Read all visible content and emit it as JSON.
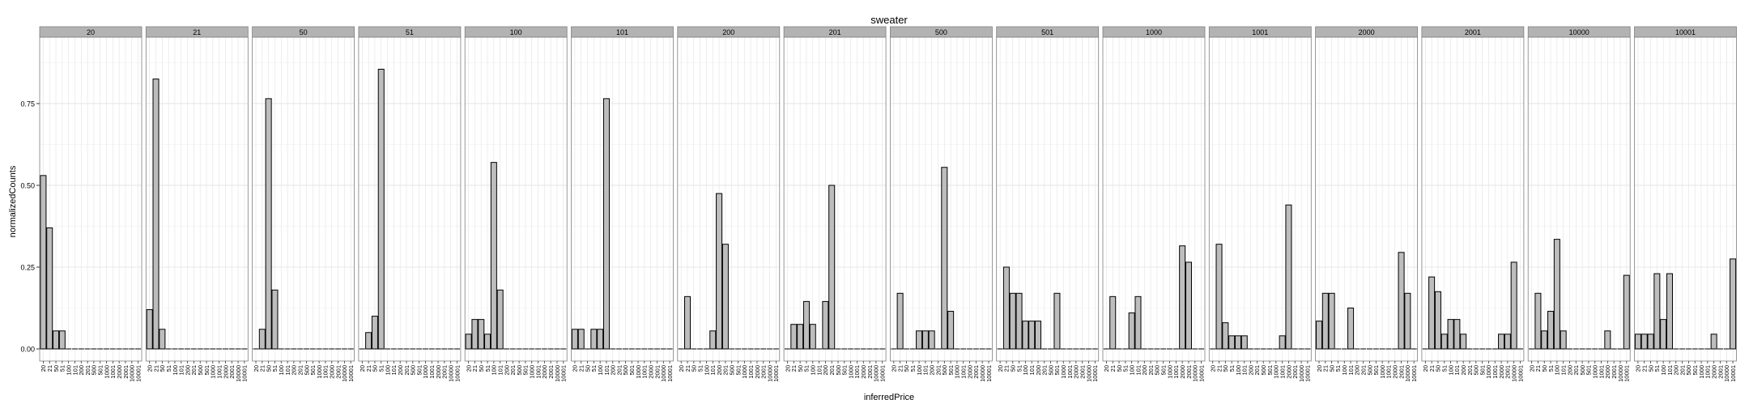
{
  "chart_data": {
    "type": "bar",
    "title": "sweater",
    "xlabel": "inferredPrice",
    "ylabel": "normalizedCounts",
    "categories": [
      "20",
      "21",
      "50",
      "51",
      "100",
      "101",
      "200",
      "201",
      "500",
      "501",
      "1000",
      "1001",
      "2000",
      "2001",
      "10000",
      "10001"
    ],
    "ylim": [
      0,
      0.9
    ],
    "yticks": [
      0.0,
      0.25,
      0.5,
      0.75
    ],
    "ytick_labels": [
      "0.00",
      "0.25",
      "0.50",
      "0.75"
    ],
    "grid": true,
    "colors": {
      "bar_fill": "#bdbdbd",
      "bar_stroke": "#000000",
      "strip_fill": "#b3b3b3",
      "grid_major": "#e2e2e2",
      "grid_minor": "#f2f2f2"
    },
    "panels": [
      {
        "label": "20",
        "values": [
          0.53,
          0.37,
          0.055,
          0.055,
          0,
          0,
          0,
          0,
          0,
          0,
          0,
          0,
          0,
          0,
          0,
          0
        ]
      },
      {
        "label": "21",
        "values": [
          0.12,
          0.825,
          0.06,
          0,
          0,
          0,
          0,
          0,
          0,
          0,
          0,
          0,
          0,
          0,
          0,
          0
        ]
      },
      {
        "label": "50",
        "values": [
          0,
          0.06,
          0.765,
          0.18,
          0,
          0,
          0,
          0,
          0,
          0,
          0,
          0,
          0,
          0,
          0,
          0
        ]
      },
      {
        "label": "51",
        "values": [
          0,
          0.05,
          0.1,
          0.855,
          0,
          0,
          0,
          0,
          0,
          0,
          0,
          0,
          0,
          0,
          0,
          0
        ]
      },
      {
        "label": "100",
        "values": [
          0.045,
          0.09,
          0.09,
          0.045,
          0.57,
          0.18,
          0,
          0,
          0,
          0,
          0,
          0,
          0,
          0,
          0,
          0
        ]
      },
      {
        "label": "101",
        "values": [
          0.06,
          0.06,
          0,
          0.06,
          0.06,
          0.765,
          0,
          0,
          0,
          0,
          0,
          0,
          0,
          0,
          0,
          0
        ]
      },
      {
        "label": "200",
        "values": [
          0,
          0.16,
          0,
          0,
          0,
          0.055,
          0.475,
          0.32,
          0,
          0,
          0,
          0,
          0,
          0,
          0,
          0
        ]
      },
      {
        "label": "201",
        "values": [
          0,
          0.075,
          0.075,
          0.145,
          0.075,
          0,
          0.145,
          0.5,
          0,
          0,
          0,
          0,
          0,
          0,
          0,
          0
        ]
      },
      {
        "label": "500",
        "values": [
          0,
          0.17,
          0,
          0,
          0.055,
          0.055,
          0.055,
          0,
          0.555,
          0.115,
          0,
          0,
          0,
          0,
          0,
          0
        ]
      },
      {
        "label": "501",
        "values": [
          0,
          0.25,
          0.17,
          0.17,
          0.085,
          0.085,
          0.085,
          0,
          0,
          0.17,
          0,
          0,
          0,
          0,
          0,
          0
        ]
      },
      {
        "label": "1000",
        "values": [
          0,
          0.16,
          0,
          0,
          0.11,
          0.16,
          0,
          0,
          0,
          0,
          0,
          0,
          0.315,
          0.265,
          0,
          0
        ]
      },
      {
        "label": "1001",
        "values": [
          0,
          0.32,
          0.08,
          0.04,
          0.04,
          0.04,
          0,
          0,
          0,
          0,
          0,
          0.04,
          0.44,
          0,
          0,
          0
        ]
      },
      {
        "label": "2000",
        "values": [
          0.085,
          0.17,
          0.17,
          0,
          0,
          0.125,
          0,
          0,
          0,
          0,
          0,
          0,
          0,
          0.295,
          0.17,
          0
        ]
      },
      {
        "label": "2001",
        "values": [
          0,
          0.22,
          0.175,
          0.045,
          0.09,
          0.09,
          0.045,
          0,
          0,
          0,
          0,
          0,
          0.045,
          0.045,
          0.265,
          0
        ]
      },
      {
        "label": "10000",
        "values": [
          0,
          0.17,
          0.055,
          0.115,
          0.335,
          0.055,
          0,
          0,
          0,
          0,
          0,
          0,
          0.055,
          0,
          0,
          0.225
        ]
      },
      {
        "label": "10001",
        "values": [
          0.045,
          0.045,
          0.045,
          0.23,
          0.09,
          0.23,
          0,
          0,
          0,
          0,
          0,
          0,
          0.045,
          0,
          0,
          0.275
        ]
      }
    ]
  }
}
